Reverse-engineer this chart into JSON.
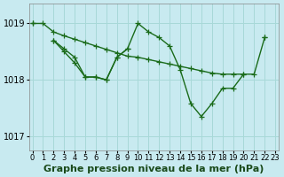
{
  "background_color": "#c8eaf0",
  "grid_color": "#a8d8d8",
  "line_color": "#1a6b1a",
  "title": "Graphe pression niveau de la mer (hPa)",
  "xlim": [
    -0.3,
    23.3
  ],
  "ylim": [
    1016.75,
    1019.35
  ],
  "yticks": [
    1017,
    1018,
    1019
  ],
  "xticks": [
    0,
    1,
    2,
    3,
    4,
    5,
    6,
    7,
    8,
    9,
    10,
    11,
    12,
    13,
    14,
    15,
    16,
    17,
    18,
    19,
    20,
    21,
    22,
    23
  ],
  "series": {
    "line1": [
      1019.0,
      1019.0,
      1018.85,
      1018.78,
      1018.72,
      1018.66,
      1018.6,
      1018.54,
      1018.48,
      1018.42,
      1018.4,
      1018.36,
      1018.32,
      1018.28,
      1018.24,
      1018.2,
      1018.16,
      1018.12,
      1018.1,
      1018.1,
      1018.1,
      null,
      1018.75,
      null
    ],
    "line2": [
      1019.0,
      null,
      1018.7,
      1018.55,
      1018.4,
      1018.05,
      1018.05,
      1018.0,
      1018.4,
      1018.55,
      1019.0,
      1018.85,
      1018.75,
      1018.6,
      1018.18,
      1017.58,
      1017.35,
      1017.58,
      1017.85,
      1017.85,
      1018.1,
      1018.1,
      1018.75,
      null
    ],
    "line3": [
      null,
      null,
      1018.7,
      1018.5,
      1018.3,
      1018.05,
      1018.05,
      1018.0,
      1018.4,
      1018.55,
      null,
      null,
      null,
      null,
      null,
      null,
      null,
      null,
      null,
      null,
      null,
      null,
      null,
      null
    ]
  },
  "title_fontsize": 8,
  "tick_fontsize": 6,
  "line_width": 1.0,
  "marker_size": 4
}
